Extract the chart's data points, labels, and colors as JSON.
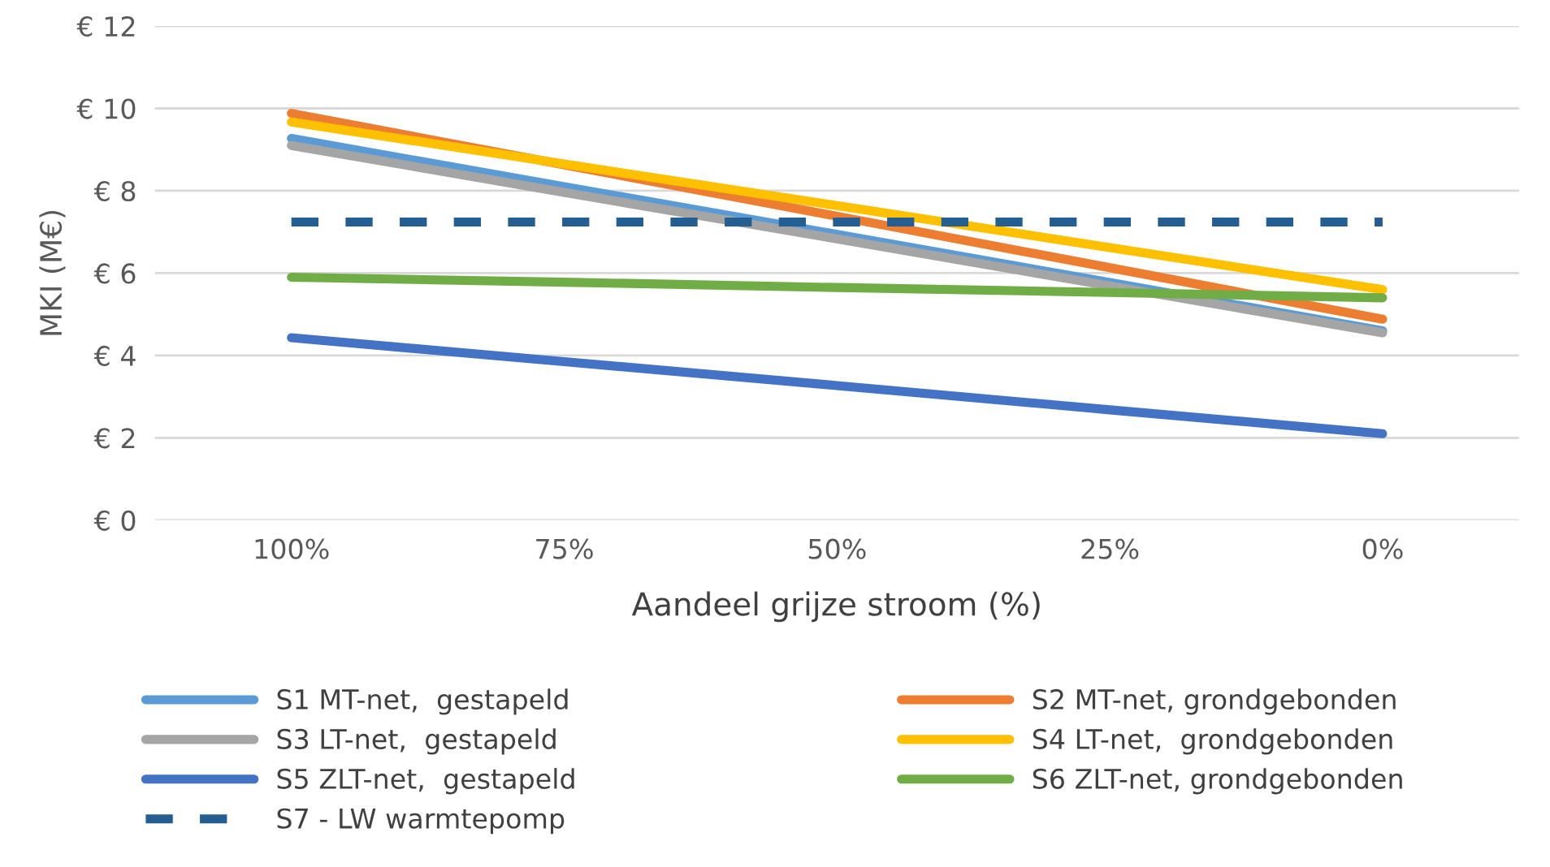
{
  "chart_data": {
    "type": "line",
    "xlabel": "Aandeel grijze stroom (%)",
    "ylabel": "MKI (M€)",
    "categories": [
      "100%",
      "75%",
      "50%",
      "25%",
      "0%"
    ],
    "ylim": [
      0,
      12
    ],
    "yticks": [
      {
        "value": 0,
        "label": "€ 0"
      },
      {
        "value": 2,
        "label": "€ 2"
      },
      {
        "value": 4,
        "label": "€ 4"
      },
      {
        "value": 6,
        "label": "€ 6"
      },
      {
        "value": 8,
        "label": "€ 8"
      },
      {
        "value": 10,
        "label": "€ 10"
      },
      {
        "value": 12,
        "label": "€ 12"
      }
    ],
    "grid": "y",
    "legend": "bottom",
    "marker": "none",
    "series": [
      {
        "name": "S1 MT-net,  gestapeld",
        "color": "#5b9bd5",
        "values": [
          9.27,
          8.1,
          6.94,
          5.77,
          4.6
        ]
      },
      {
        "name": "S2 MT-net, grondgebonden",
        "color": "#ed7d31",
        "values": [
          9.88,
          8.63,
          7.38,
          6.13,
          4.88
        ]
      },
      {
        "name": "S3 LT-net,  gestapeld",
        "color": "#a5a5a5",
        "values": [
          9.1,
          7.96,
          6.83,
          5.69,
          4.55
        ]
      },
      {
        "name": "S4 LT-net,  grondgebonden",
        "color": "#ffc000",
        "values": [
          9.67,
          8.65,
          7.64,
          6.62,
          5.6
        ]
      },
      {
        "name": "S5 ZLT-net,  gestapeld",
        "color": "#4472c4",
        "values": [
          4.43,
          3.85,
          3.27,
          2.68,
          2.1
        ]
      },
      {
        "name": "S6 ZLT-net, grondgebonden",
        "color": "#70ad47",
        "values": [
          5.9,
          5.78,
          5.65,
          5.53,
          5.4
        ]
      },
      {
        "name": "S7 - LW warmtepomp",
        "color": "#255e91",
        "line_style": "dashed",
        "values": [
          7.24,
          7.24,
          7.24,
          7.24,
          7.24
        ]
      }
    ]
  }
}
